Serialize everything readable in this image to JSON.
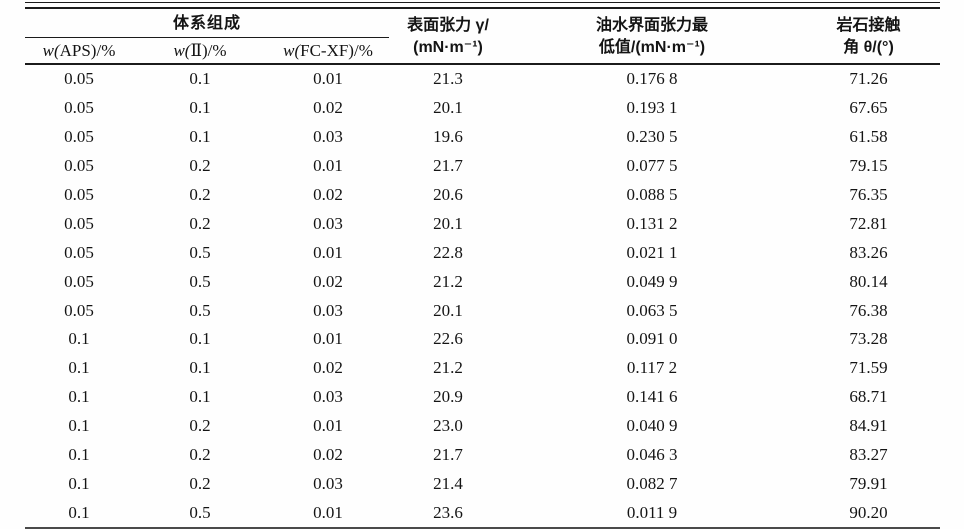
{
  "colors": {
    "rule": "#1b1b1b",
    "text": "#141414",
    "background": "#fefefe"
  },
  "table": {
    "group_header": "体系组成",
    "sub_headers": [
      "w(APS)/%",
      "w(Ⅱ)/%",
      "w(FC-XF)/%"
    ],
    "column_headers": {
      "surface_tension": [
        "表面张力 γ/",
        "(mN·m⁻¹)"
      ],
      "interfacial_tension": [
        "油水界面张力最",
        "低值/(mN·m⁻¹)"
      ],
      "contact_angle": [
        "岩石接触",
        "角 θ/(°)"
      ]
    },
    "rows": [
      [
        "0.05",
        "0.1",
        "0.01",
        "21.3",
        "0.176 8",
        "71.26"
      ],
      [
        "0.05",
        "0.1",
        "0.02",
        "20.1",
        "0.193 1",
        "67.65"
      ],
      [
        "0.05",
        "0.1",
        "0.03",
        "19.6",
        "0.230 5",
        "61.58"
      ],
      [
        "0.05",
        "0.2",
        "0.01",
        "21.7",
        "0.077 5",
        "79.15"
      ],
      [
        "0.05",
        "0.2",
        "0.02",
        "20.6",
        "0.088 5",
        "76.35"
      ],
      [
        "0.05",
        "0.2",
        "0.03",
        "20.1",
        "0.131 2",
        "72.81"
      ],
      [
        "0.05",
        "0.5",
        "0.01",
        "22.8",
        "0.021 1",
        "83.26"
      ],
      [
        "0.05",
        "0.5",
        "0.02",
        "21.2",
        "0.049 9",
        "80.14"
      ],
      [
        "0.05",
        "0.5",
        "0.03",
        "20.1",
        "0.063 5",
        "76.38"
      ],
      [
        "0.1",
        "0.1",
        "0.01",
        "22.6",
        "0.091 0",
        "73.28"
      ],
      [
        "0.1",
        "0.1",
        "0.02",
        "21.2",
        "0.117 2",
        "71.59"
      ],
      [
        "0.1",
        "0.1",
        "0.03",
        "20.9",
        "0.141 6",
        "68.71"
      ],
      [
        "0.1",
        "0.2",
        "0.01",
        "23.0",
        "0.040 9",
        "84.91"
      ],
      [
        "0.1",
        "0.2",
        "0.02",
        "21.7",
        "0.046 3",
        "83.27"
      ],
      [
        "0.1",
        "0.2",
        "0.03",
        "21.4",
        "0.082 7",
        "79.91"
      ],
      [
        "0.1",
        "0.5",
        "0.01",
        "23.6",
        "0.011 9",
        "90.20"
      ]
    ]
  }
}
